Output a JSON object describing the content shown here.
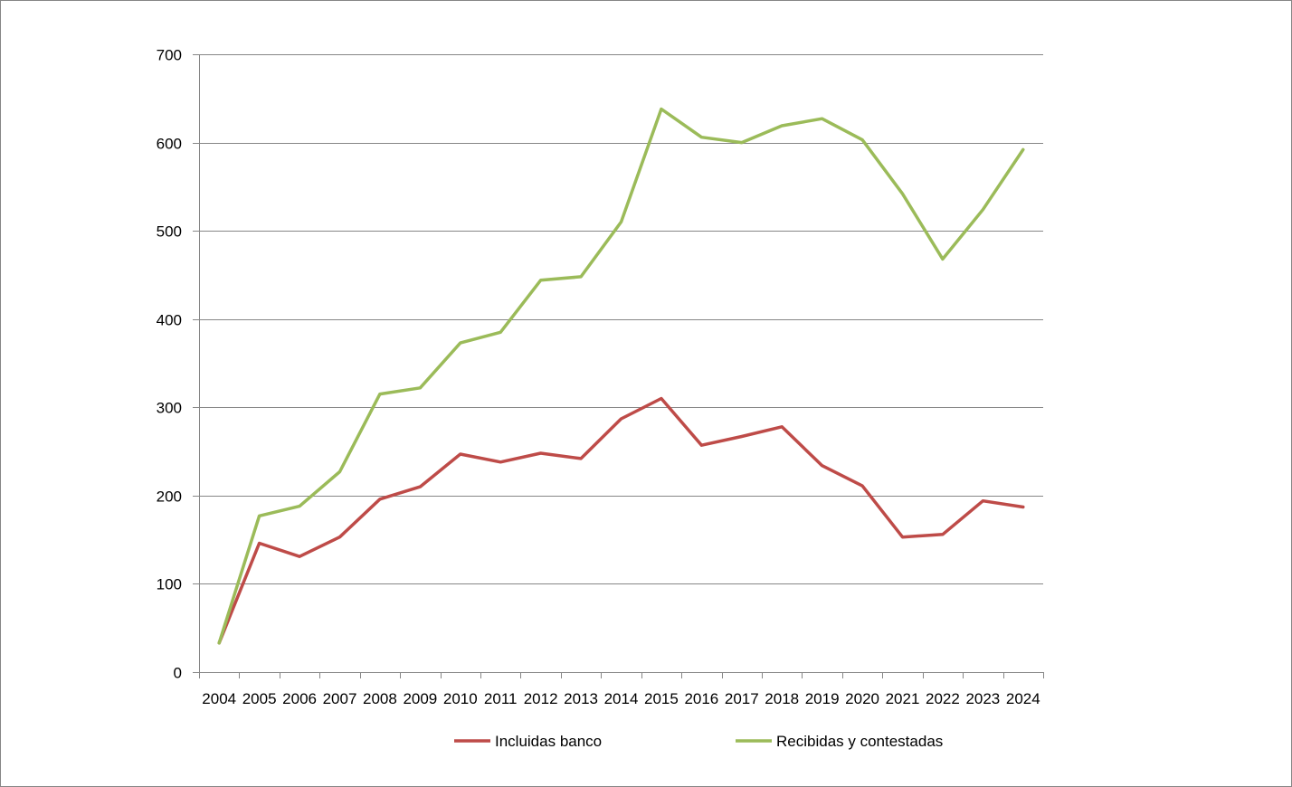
{
  "chart_data": {
    "type": "line",
    "title": "",
    "xlabel": "",
    "ylabel": "",
    "categories": [
      "2004",
      "2005",
      "2006",
      "2007",
      "2008",
      "2009",
      "2010",
      "2011",
      "2012",
      "2013",
      "2014",
      "2015",
      "2016",
      "2017",
      "2018",
      "2019",
      "2020",
      "2021",
      "2022",
      "2023",
      "2024"
    ],
    "ylim": [
      0,
      700
    ],
    "yticks": [
      0,
      100,
      200,
      300,
      400,
      500,
      600,
      700
    ],
    "grid": "horizontal",
    "legend_position": "bottom",
    "series": [
      {
        "name": "Incluidas banco",
        "color": "#be4b48",
        "values": [
          33,
          146,
          131,
          153,
          196,
          210,
          247,
          238,
          248,
          242,
          287,
          310,
          257,
          267,
          278,
          234,
          211,
          153,
          156,
          194,
          187
        ]
      },
      {
        "name": "Recibidas y contestadas",
        "color": "#9bbb59",
        "values": [
          33,
          177,
          188,
          227,
          315,
          322,
          373,
          385,
          444,
          448,
          510,
          638,
          606,
          600,
          619,
          627,
          603,
          542,
          468,
          524,
          592
        ]
      }
    ]
  }
}
